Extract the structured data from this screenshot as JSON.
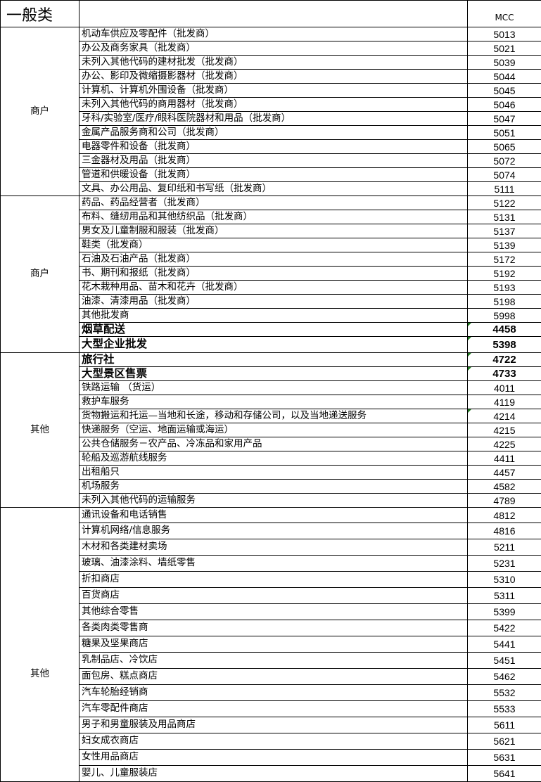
{
  "header": {
    "title": "一般类",
    "column2": "",
    "column3": "MCC"
  },
  "comment_flag_color": "#1f7a1f",
  "groups": [
    {
      "label": "商户",
      "rows": [
        {
          "name": "机动车供应及零配件（批发商）",
          "mcc": "5013"
        },
        {
          "name": "办公及商务家具（批发商）",
          "mcc": "5021"
        },
        {
          "name": "未列入其他代码的建材批发（批发商）",
          "mcc": "5039"
        },
        {
          "name": "办公、影印及微缩摄影器材（批发商）",
          "mcc": "5044"
        },
        {
          "name": "计算机、计算机外围设备（批发商）",
          "mcc": "5045"
        },
        {
          "name": "未列入其他代码的商用器材（批发商）",
          "mcc": "5046"
        },
        {
          "name": "牙科/实验室/医疗/眼科医院器材和用品（批发商）",
          "mcc": "5047"
        },
        {
          "name": "金属产品服务商和公司（批发商）",
          "mcc": "5051"
        },
        {
          "name": "电器零件和设备（批发商）",
          "mcc": "5065"
        },
        {
          "name": "三金器材及用品（批发商）",
          "mcc": "5072"
        },
        {
          "name": "管道和供暖设备（批发商）",
          "mcc": "5074"
        },
        {
          "name": "文具、办公用品、复印纸和书写纸（批发商）",
          "mcc": "5111"
        }
      ]
    },
    {
      "label": "商户",
      "rows": [
        {
          "name": "药品、药品经营者（批发商）",
          "mcc": "5122"
        },
        {
          "name": "布料、缝纫用品和其他纺织品（批发商）",
          "mcc": "5131"
        },
        {
          "name": "男女及儿童制服和服装（批发商）",
          "mcc": "5137"
        },
        {
          "name": "鞋类（批发商）",
          "mcc": "5139"
        },
        {
          "name": "石油及石油产品（批发商）",
          "mcc": "5172"
        },
        {
          "name": "书、期刊和报纸（批发商）",
          "mcc": "5192"
        },
        {
          "name": "花木栽种用品、苗木和花卉（批发商）",
          "mcc": "5193"
        },
        {
          "name": "油漆、清漆用品（批发商）",
          "mcc": "5198"
        },
        {
          "name": "其他批发商",
          "mcc": "5998"
        },
        {
          "name": "烟草配送",
          "mcc": "4458",
          "bold": true,
          "flag": true
        },
        {
          "name": "大型企业批发",
          "mcc": "5398",
          "bold": true,
          "flag": true
        }
      ]
    },
    {
      "label": "其他",
      "rows": [
        {
          "name": "旅行社",
          "mcc": "4722",
          "bold": true,
          "flag": true
        },
        {
          "name": "大型景区售票",
          "mcc": "4733",
          "bold": true,
          "flag": true
        },
        {
          "name": "铁路运输  （货运）",
          "mcc": "4011"
        },
        {
          "name": "救护车服务",
          "mcc": "4119"
        },
        {
          "name": "货物搬运和托运—当地和长途，移动和存储公司，以及当地递送服务",
          "mcc": "4214",
          "flag": true
        },
        {
          "name": "快递服务（空运、地面运输或海运）",
          "mcc": "4215"
        },
        {
          "name": "公共仓储服务－农产品、冷冻品和家用产品",
          "mcc": "4225"
        },
        {
          "name": "轮船及巡游航线服务",
          "mcc": "4411"
        },
        {
          "name": "出租船只",
          "mcc": "4457"
        },
        {
          "name": "机场服务",
          "mcc": "4582"
        },
        {
          "name": "未列入其他代码的运输服务",
          "mcc": "4789"
        }
      ]
    },
    {
      "label": "其他",
      "rows": [
        {
          "name": "通讯设备和电话销售",
          "mcc": "4812"
        },
        {
          "name": "计算机网络/信息服务",
          "mcc": "4816"
        },
        {
          "name": "木材和各类建材卖场",
          "mcc": "5211"
        },
        {
          "name": "玻璃、油漆涂料、墙纸零售",
          "mcc": "5231"
        },
        {
          "name": "折扣商店",
          "mcc": "5310"
        },
        {
          "name": "百货商店",
          "mcc": "5311"
        },
        {
          "name": "其他综合零售",
          "mcc": "5399"
        },
        {
          "name": "各类肉类零售商",
          "mcc": "5422"
        },
        {
          "name": "糖果及坚果商店",
          "mcc": "5441"
        },
        {
          "name": "乳制品店、冷饮店",
          "mcc": "5451"
        },
        {
          "name": "面包房、糕点商店",
          "mcc": "5462"
        },
        {
          "name": "汽车轮胎经销商",
          "mcc": "5532"
        },
        {
          "name": "汽车零配件商店",
          "mcc": "5533"
        },
        {
          "name": "男子和男童服装及用品商店",
          "mcc": "5611"
        },
        {
          "name": "妇女成衣商店",
          "mcc": "5621"
        },
        {
          "name": "女性用品商店",
          "mcc": "5631"
        },
        {
          "name": "婴儿、儿童服装店",
          "mcc": "5641"
        }
      ]
    }
  ]
}
